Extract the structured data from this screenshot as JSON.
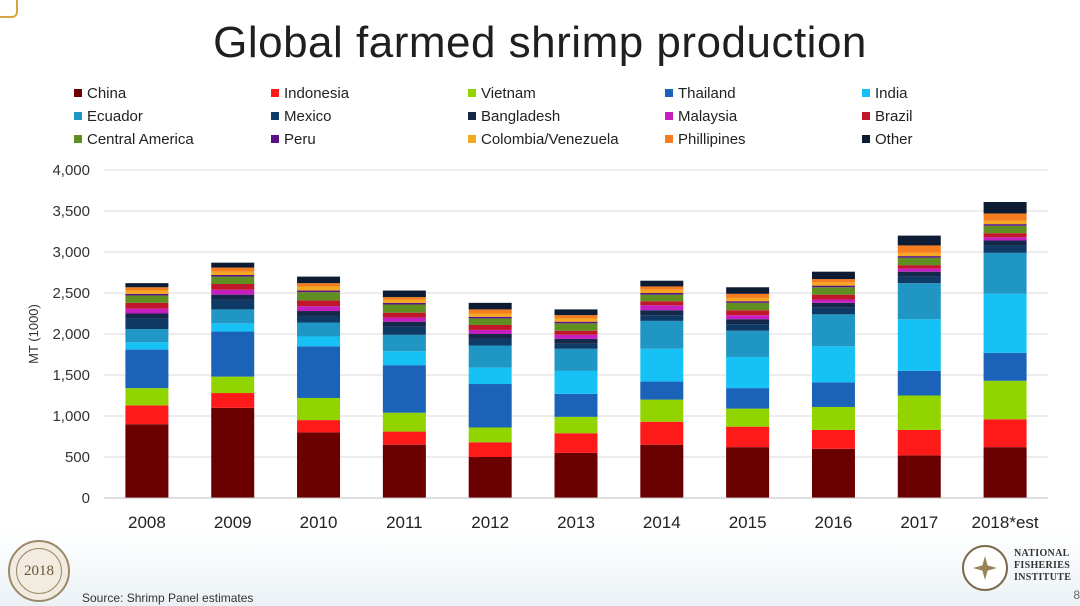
{
  "slide": {
    "source": "Source: Shrimp Panel estimates",
    "page_number": "8",
    "conference_logo_text": "2018",
    "institute_logo_lines": [
      "NATIONAL",
      "FISHERIES",
      "INSTITUTE"
    ]
  },
  "colors": {
    "China": "#6b0000",
    "Indonesia": "#ff1a1a",
    "Vietnam": "#92d400",
    "Thailand": "#1b63b8",
    "India": "#16c2f5",
    "Ecuador": "#1f96c4",
    "Mexico": "#0f3a66",
    "Bangladesh": "#14284a",
    "Malaysia": "#c51fbf",
    "Brazil": "#c0182a",
    "Central America": "#5f8f21",
    "Peru": "#5a1288",
    "Colombia/Venezuela": "#f4a81f",
    "Phillipines": "#f57c1f",
    "Other": "#0e1c33"
  },
  "chart_data": {
    "type": "bar",
    "stacked": true,
    "title": "Global farmed shrimp production",
    "xlabel": "",
    "ylabel": "MT (1000)",
    "ylim": [
      0,
      4000
    ],
    "yticks": [
      0,
      500,
      1000,
      1500,
      2000,
      2500,
      3000,
      3500,
      4000
    ],
    "ytick_labels": [
      "0",
      "500",
      "1,000",
      "1,500",
      "2,000",
      "2,500",
      "3,000",
      "3,500",
      "4,000"
    ],
    "grid": true,
    "legend_position": "top",
    "categories": [
      "2008",
      "2009",
      "2010",
      "2011",
      "2012",
      "2013",
      "2014",
      "2015",
      "2016",
      "2017",
      "2018*est"
    ],
    "series": [
      {
        "name": "China",
        "values": [
          900,
          1100,
          800,
          650,
          500,
          550,
          650,
          620,
          600,
          520,
          620
        ]
      },
      {
        "name": "Indonesia",
        "values": [
          230,
          180,
          150,
          160,
          180,
          240,
          280,
          250,
          230,
          310,
          340
        ]
      },
      {
        "name": "Vietnam",
        "values": [
          210,
          200,
          270,
          230,
          180,
          200,
          270,
          220,
          280,
          420,
          470
        ]
      },
      {
        "name": "Thailand",
        "values": [
          470,
          550,
          630,
          580,
          530,
          280,
          220,
          250,
          300,
          300,
          340
        ]
      },
      {
        "name": "India",
        "values": [
          90,
          100,
          120,
          170,
          200,
          280,
          400,
          380,
          440,
          630,
          720
        ]
      },
      {
        "name": "Ecuador",
        "values": [
          160,
          170,
          170,
          200,
          270,
          270,
          340,
          320,
          390,
          440,
          500
        ]
      },
      {
        "name": "Mexico",
        "values": [
          130,
          120,
          80,
          100,
          80,
          60,
          70,
          80,
          80,
          80,
          90
        ]
      },
      {
        "name": "Bangladesh",
        "values": [
          60,
          60,
          60,
          60,
          60,
          60,
          60,
          60,
          60,
          60,
          60
        ]
      },
      {
        "name": "Malaysia",
        "values": [
          60,
          60,
          60,
          50,
          50,
          50,
          60,
          50,
          40,
          40,
          40
        ]
      },
      {
        "name": "Brazil",
        "values": [
          70,
          70,
          70,
          60,
          60,
          50,
          50,
          60,
          60,
          40,
          50
        ]
      },
      {
        "name": "Central America",
        "values": [
          90,
          90,
          100,
          100,
          80,
          90,
          80,
          90,
          90,
          90,
          90
        ]
      },
      {
        "name": "Peru",
        "values": [
          20,
          20,
          20,
          20,
          20,
          20,
          20,
          20,
          20,
          20,
          20
        ]
      },
      {
        "name": "Colombia/Venezuela",
        "values": [
          40,
          40,
          50,
          40,
          40,
          40,
          40,
          40,
          40,
          40,
          40
        ]
      },
      {
        "name": "Phillipines",
        "values": [
          40,
          50,
          40,
          30,
          50,
          40,
          40,
          50,
          40,
          90,
          90
        ]
      },
      {
        "name": "Other",
        "values": [
          50,
          60,
          80,
          80,
          80,
          70,
          70,
          80,
          90,
          120,
          140
        ]
      }
    ]
  }
}
